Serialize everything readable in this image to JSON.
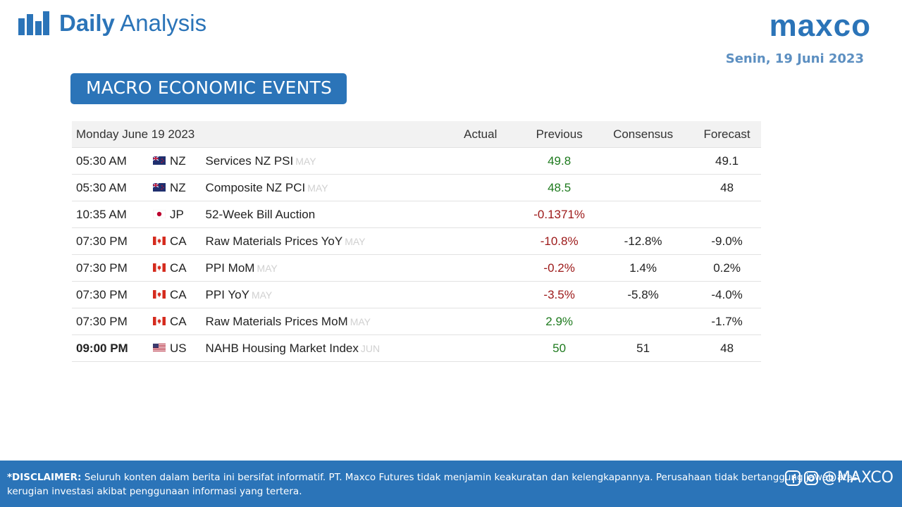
{
  "header": {
    "title_bold": "Daily",
    "title_light": "Analysis",
    "logo_text": "maxco",
    "date": "Senin, 19 Juni 2023"
  },
  "section": {
    "title": "MACRO ECONOMIC EVENTS"
  },
  "table": {
    "columns": {
      "date": "Monday June 19 2023",
      "actual": "Actual",
      "previous": "Previous",
      "consensus": "Consensus",
      "forecast": "Forecast"
    },
    "rows": [
      {
        "time": "05:30 AM",
        "country": "NZ",
        "event": "Services NZ PSI",
        "period": "MAY",
        "actual": "",
        "previous": "49.8",
        "consensus": "",
        "forecast": "49.1"
      },
      {
        "time": "05:30 AM",
        "country": "NZ",
        "event": "Composite NZ PCI",
        "period": "MAY",
        "actual": "",
        "previous": "48.5",
        "consensus": "",
        "forecast": "48"
      },
      {
        "time": "10:35 AM",
        "country": "JP",
        "event": "52-Week Bill Auction",
        "period": "",
        "actual": "",
        "previous": "-0.1371%",
        "consensus": "",
        "forecast": ""
      },
      {
        "time": "07:30 PM",
        "country": "CA",
        "event": "Raw Materials Prices YoY",
        "period": "MAY",
        "actual": "",
        "previous": "-10.8%",
        "consensus": "-12.8%",
        "forecast": "-9.0%"
      },
      {
        "time": "07:30 PM",
        "country": "CA",
        "event": "PPI MoM",
        "period": "MAY",
        "actual": "",
        "previous": "-0.2%",
        "consensus": "1.4%",
        "forecast": "0.2%"
      },
      {
        "time": "07:30 PM",
        "country": "CA",
        "event": "PPI YoY",
        "period": "MAY",
        "actual": "",
        "previous": "-3.5%",
        "consensus": "-5.8%",
        "forecast": "-4.0%"
      },
      {
        "time": "07:30 PM",
        "country": "CA",
        "event": "Raw Materials Prices MoM",
        "period": "MAY",
        "actual": "",
        "previous": "2.9%",
        "consensus": "",
        "forecast": "-1.7%"
      },
      {
        "time": "09:00 PM",
        "country": "US",
        "event": "NAHB Housing Market Index",
        "period": "JUN",
        "actual": "",
        "previous": "50",
        "consensus": "51",
        "forecast": "48"
      }
    ]
  },
  "colors": {
    "brand_blue": "#2b74b8",
    "positive": "#1e7a1e",
    "negative": "#9c1818"
  },
  "footer": {
    "disclaimer_label": "*DISCLAIMER:",
    "disclaimer_text": " Seluruh konten dalam berita ini bersifat informatif. PT. Maxco Futures tidak menjamin keakuratan dan kelengkapannya. Perusahaan tidak bertanggung jawab atas kerugian investasi akibat penggunaan informasi yang tertera.",
    "social_handle": "@MAXCO",
    "social_icons": [
      "facebook-icon",
      "instagram-icon"
    ]
  }
}
